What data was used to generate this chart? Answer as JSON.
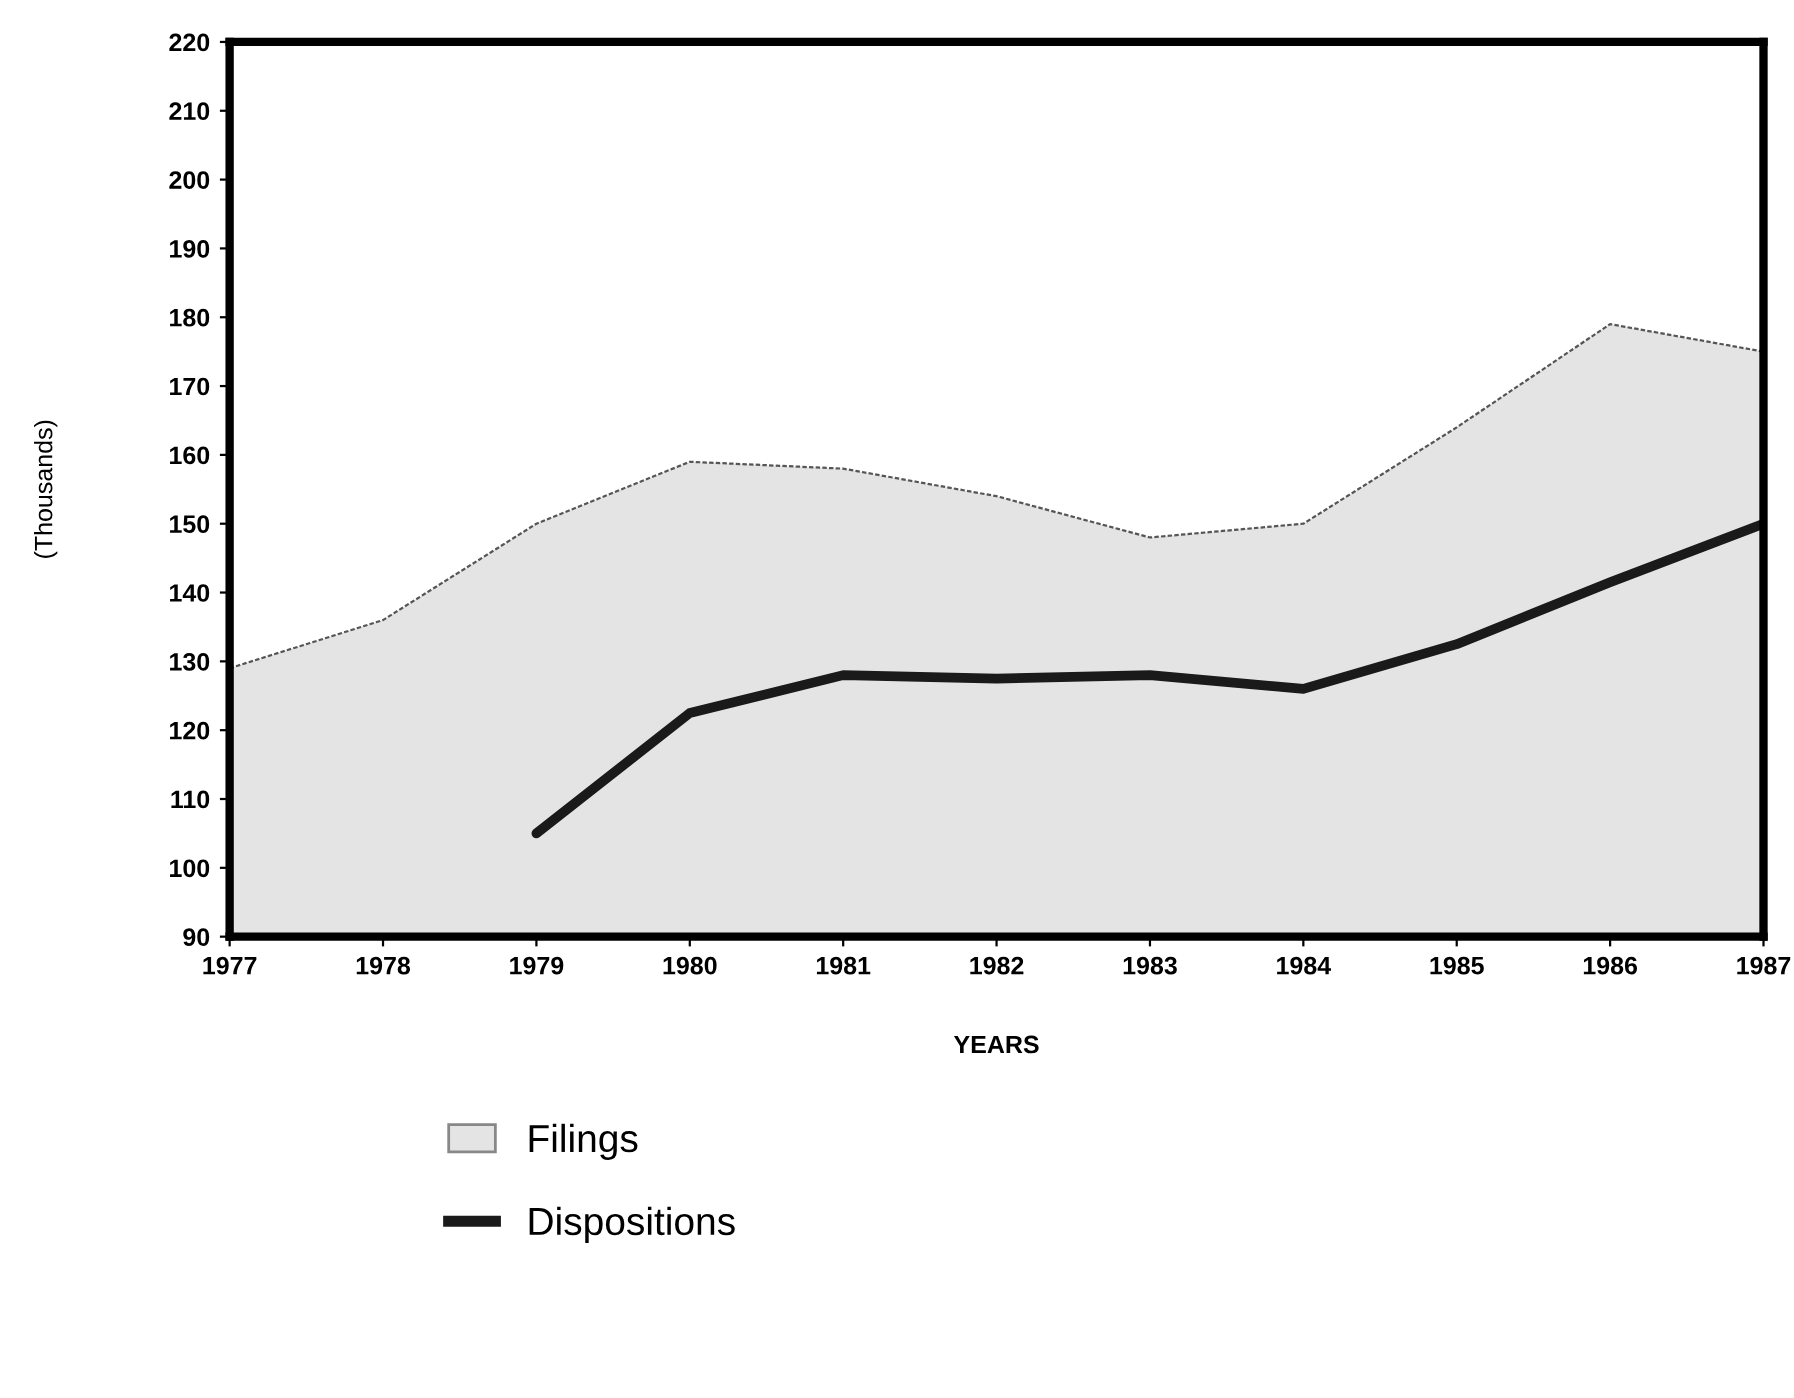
{
  "chart_data": {
    "type": "area",
    "xlabel": "YEARS",
    "ylabel": "(Thousands)",
    "x": [
      1977,
      1978,
      1979,
      1980,
      1981,
      1982,
      1983,
      1984,
      1985,
      1986,
      1987
    ],
    "series": [
      {
        "name": "Filings",
        "color": "#e4e4e4",
        "values": [
          129,
          136,
          150,
          159,
          158,
          154,
          148,
          150,
          164,
          179,
          175
        ]
      },
      {
        "name": "Dispositions",
        "type": "line",
        "color": "#1a1a1a",
        "values": [
          null,
          null,
          105,
          122.5,
          128,
          127.5,
          128,
          126,
          132.5,
          141.5,
          150
        ]
      }
    ],
    "xlim": [
      1977,
      1987
    ],
    "ylim": [
      90,
      220
    ],
    "xticks": [
      1977,
      1978,
      1979,
      1980,
      1981,
      1982,
      1983,
      1984,
      1985,
      1986,
      1987
    ],
    "yticks": [
      90,
      100,
      110,
      120,
      130,
      140,
      150,
      160,
      170,
      180,
      190,
      200,
      210,
      220
    ],
    "grid": false,
    "legend": "bottom"
  }
}
